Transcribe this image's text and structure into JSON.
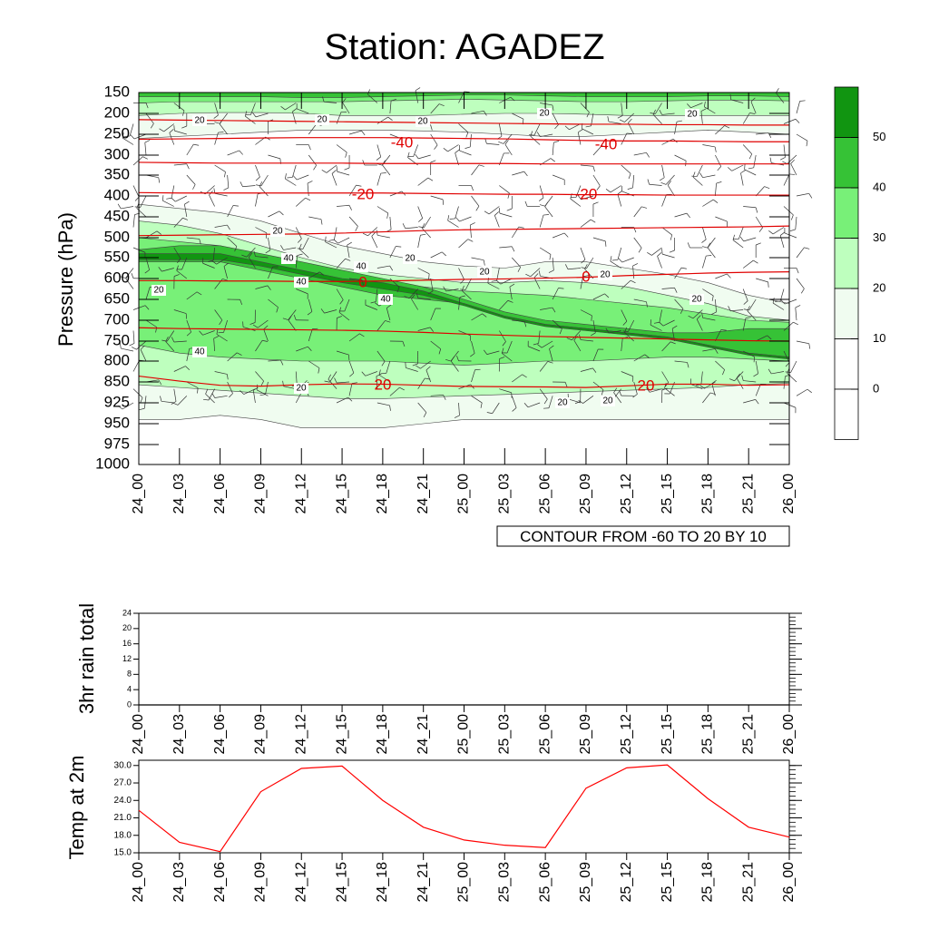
{
  "title": "Station: AGADEZ",
  "chart_data": [
    {
      "type": "heatmap",
      "id": "cross_section",
      "ylabel": "Pressure (hPa)",
      "y_ticks": [
        150,
        200,
        250,
        300,
        350,
        400,
        450,
        500,
        550,
        600,
        650,
        700,
        750,
        800,
        850,
        925,
        950,
        975,
        1000
      ],
      "x_ticks": [
        "24_00",
        "24_03",
        "24_06",
        "24_09",
        "24_12",
        "24_15",
        "24_18",
        "24_21",
        "25_00",
        "25_03",
        "25_06",
        "25_09",
        "25_12",
        "25_15",
        "25_18",
        "25_21",
        "26_00"
      ],
      "contour_info": "CONTOUR FROM -60 TO 20 BY 10",
      "colorbar": {
        "labels": [
          "0",
          "10",
          "20",
          "30",
          "40",
          "50"
        ],
        "colors": [
          "#ffffff",
          "#ffffff",
          "#f0fcf0",
          "#beffbe",
          "#78f078",
          "#36c236",
          "#119511"
        ]
      },
      "fill_levels": [
        10,
        20,
        30,
        40,
        50
      ],
      "fill_colors": [
        "#f0fcf0",
        "#beffbe",
        "#78f078",
        "#36c236",
        "#119511"
      ],
      "humidity_fill_labels": [
        "20",
        "20",
        "20",
        "20",
        "20",
        "20",
        "40",
        "40",
        "40",
        "40",
        "20",
        "20",
        "20",
        "20",
        "20",
        "40",
        "20",
        "20",
        "20"
      ],
      "temperature_labels": [
        "-40",
        "-40",
        "-20",
        "-20",
        "0",
        "0",
        "20",
        "20"
      ],
      "temperature_contours": [
        {
          "level": -50,
          "values": [
            215,
            216,
            217,
            218,
            219,
            220,
            221,
            222,
            223,
            224,
            225,
            226,
            226,
            227,
            227,
            228,
            228
          ]
        },
        {
          "level": -40,
          "values": [
            262,
            261,
            260,
            259,
            258,
            258,
            258,
            259,
            260,
            261,
            263,
            265,
            266,
            266,
            267,
            268,
            268
          ]
        },
        {
          "level": -30,
          "values": [
            318,
            319,
            320,
            320,
            320,
            320,
            321,
            321,
            321,
            321,
            322,
            322,
            322,
            322,
            322,
            322,
            322
          ]
        },
        {
          "level": -20,
          "values": [
            392,
            393,
            393,
            393,
            393,
            393,
            393,
            394,
            395,
            396,
            396,
            397,
            397,
            398,
            398,
            398,
            398
          ]
        },
        {
          "level": -10,
          "values": [
            495,
            494,
            493,
            492,
            491,
            489,
            486,
            483,
            481,
            480,
            479,
            478,
            477,
            476,
            475,
            474,
            472
          ]
        },
        {
          "level": 0,
          "values": [
            605,
            605,
            606,
            606,
            607,
            607,
            606,
            604,
            602,
            601,
            599,
            597,
            593,
            590,
            587,
            585,
            584
          ]
        },
        {
          "level": 10,
          "values": [
            718,
            720,
            721,
            722,
            723,
            724,
            726,
            729,
            733,
            736,
            739,
            741,
            743,
            745,
            747,
            749,
            750
          ]
        },
        {
          "level": 20,
          "values": [
            836,
            848,
            862,
            865,
            860,
            857,
            858,
            862,
            866,
            867,
            868,
            870,
            864,
            858,
            858,
            862,
            860
          ]
        }
      ]
    },
    {
      "type": "line",
      "id": "rain",
      "ylabel": "3hr rain total",
      "y_ticks": [
        "0",
        "4",
        "8",
        "12",
        "16",
        "20",
        "24"
      ],
      "ylim": [
        0,
        24
      ],
      "x": [
        "24_00",
        "24_03",
        "24_06",
        "24_09",
        "24_12",
        "24_15",
        "24_18",
        "24_21",
        "25_00",
        "25_03",
        "25_06",
        "25_09",
        "25_12",
        "25_15",
        "25_18",
        "25_21",
        "26_00"
      ],
      "y": [
        0,
        0,
        0,
        0,
        0,
        0,
        0,
        0,
        0,
        0,
        0,
        0,
        0,
        0,
        0,
        0,
        0
      ]
    },
    {
      "type": "line",
      "id": "temp2m",
      "ylabel": "Temp at 2m",
      "y_ticks": [
        "15.0",
        "18.0",
        "21.0",
        "24.0",
        "27.0",
        "30.0"
      ],
      "ylim": [
        15,
        30.9
      ],
      "x": [
        "24_00",
        "24_03",
        "24_06",
        "24_09",
        "24_12",
        "24_15",
        "24_18",
        "24_21",
        "25_00",
        "25_03",
        "25_06",
        "25_09",
        "25_12",
        "25_15",
        "25_18",
        "25_21",
        "26_00"
      ],
      "y": [
        22.3,
        16.8,
        15.2,
        25.5,
        29.5,
        29.9,
        24.0,
        19.4,
        17.2,
        16.3,
        15.9,
        26.1,
        29.6,
        30.1,
        24.3,
        19.4,
        17.7
      ],
      "color": "#ff0000"
    }
  ]
}
